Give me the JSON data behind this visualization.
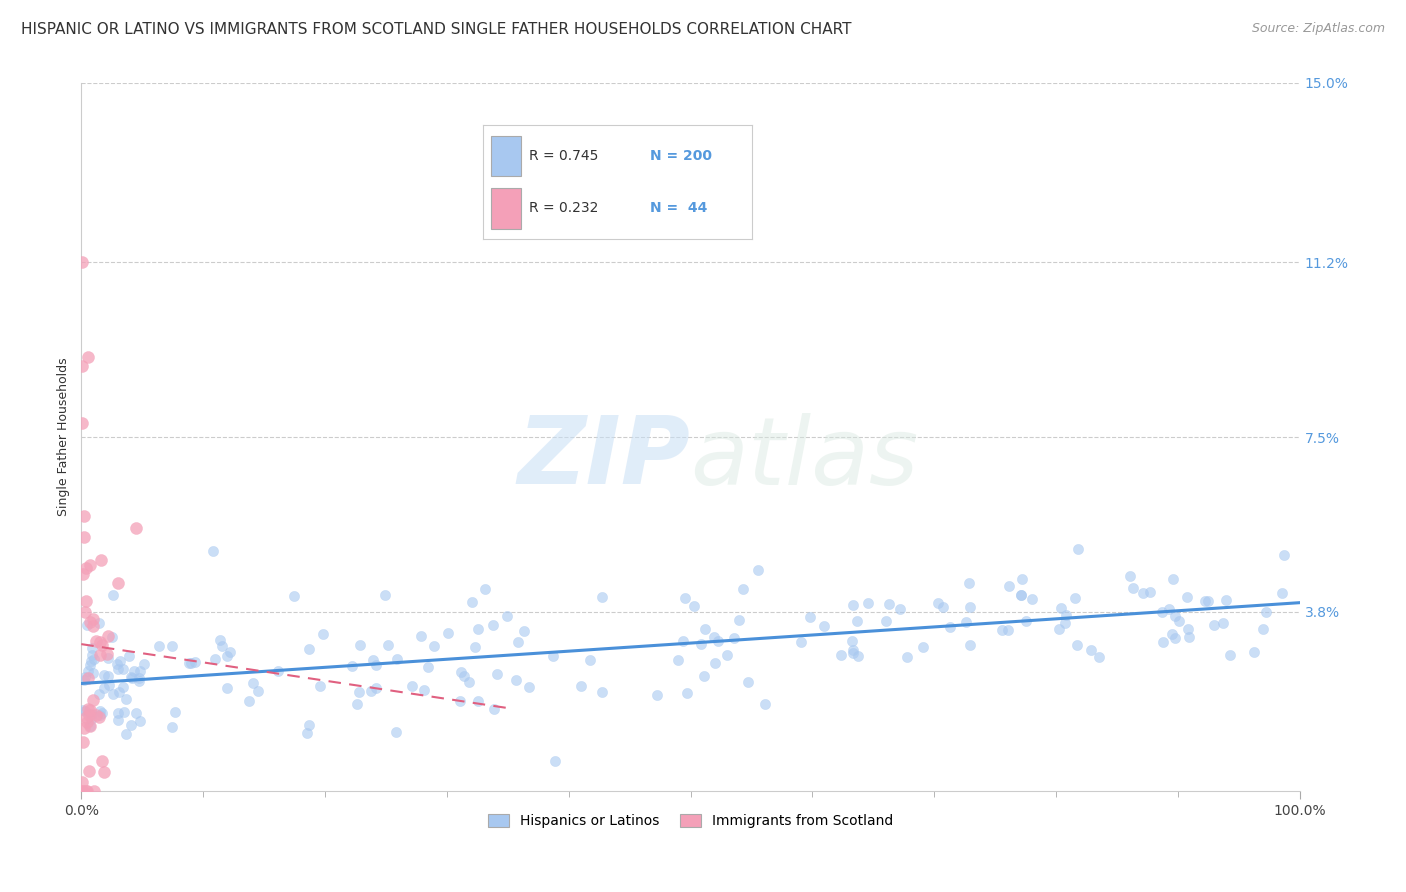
{
  "title": "HISPANIC OR LATINO VS IMMIGRANTS FROM SCOTLAND SINGLE FATHER HOUSEHOLDS CORRELATION CHART",
  "source": "Source: ZipAtlas.com",
  "ylabel": "Single Father Households",
  "legend_label1": "Hispanics or Latinos",
  "legend_label2": "Immigrants from Scotland",
  "R1": 0.745,
  "N1": 200,
  "R2": 0.232,
  "N2": 44,
  "xlim": [
    0,
    100
  ],
  "ylim": [
    0,
    15.0
  ],
  "yticks": [
    3.8,
    7.5,
    11.2,
    15.0
  ],
  "ytick_labels": [
    "3.8%",
    "7.5%",
    "11.2%",
    "15.0%"
  ],
  "xtick_labels": [
    "0.0%",
    "100.0%"
  ],
  "color1": "#a8c8f0",
  "color2": "#f4a0b8",
  "line_color1": "#4a90d9",
  "line_color2": "#e06080",
  "tick_color": "#5599dd",
  "background_color": "#ffffff",
  "watermark_zip": "ZIP",
  "watermark_atlas": "atlas",
  "title_fontsize": 11,
  "source_fontsize": 9,
  "ylabel_fontsize": 9,
  "seed1": 42,
  "seed2": 77
}
